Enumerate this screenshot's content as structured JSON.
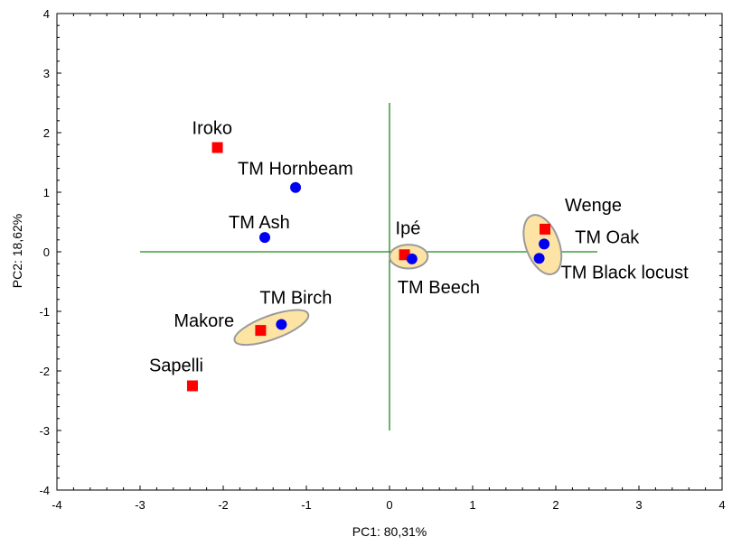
{
  "chart_data": {
    "type": "scatter",
    "xlabel": "PC1: 80,31%",
    "ylabel": "PC2: 18,62%",
    "xlim": [
      -4,
      4
    ],
    "ylim": [
      -4,
      4
    ],
    "xticks": [
      -4,
      -3,
      -2,
      -1,
      0,
      1,
      2,
      3,
      4
    ],
    "yticks": [
      -4,
      -3,
      -2,
      -1,
      0,
      1,
      2,
      3,
      4
    ],
    "grid": false,
    "reference_lines": {
      "horizontal": {
        "y": 0,
        "x_from": -3,
        "x_to": 2.5
      },
      "vertical": {
        "x": 0,
        "y_from": -3,
        "y_to": 2.5
      },
      "color": "#1a8a1a"
    },
    "series": [
      {
        "marker": "square",
        "color": "#ff0000",
        "points": [
          {
            "label": "Iroko",
            "x": -2.07,
            "y": 1.75
          },
          {
            "label": "Makore",
            "x": -1.55,
            "y": -1.32
          },
          {
            "label": "Sapelli",
            "x": -2.37,
            "y": -2.25
          },
          {
            "label": "Ipé",
            "x": 0.18,
            "y": -0.05
          },
          {
            "label": "Wenge",
            "x": 1.87,
            "y": 0.38
          }
        ]
      },
      {
        "marker": "circle",
        "color": "#0000ee",
        "points": [
          {
            "label": "TM Hornbeam",
            "x": -1.13,
            "y": 1.08
          },
          {
            "label": "TM Ash",
            "x": -1.5,
            "y": 0.24
          },
          {
            "label": "TM Birch",
            "x": -1.3,
            "y": -1.22
          },
          {
            "label": "TM Beech",
            "x": 0.27,
            "y": -0.12
          },
          {
            "label": "TM Oak",
            "x": 1.86,
            "y": 0.13
          },
          {
            "label": "TM Black locust",
            "x": 1.8,
            "y": -0.11
          }
        ]
      }
    ],
    "groups": [
      {
        "members": [
          "Makore",
          "TM Birch"
        ],
        "cx": -1.42,
        "cy": -1.27,
        "rx": 0.47,
        "ry": 0.2,
        "angle": 20
      },
      {
        "members": [
          "Ipé",
          "TM Beech"
        ],
        "cx": 0.23,
        "cy": -0.08,
        "rx": 0.23,
        "ry": 0.2,
        "angle": 0
      },
      {
        "members": [
          "Wenge",
          "TM Oak",
          "TM Black locust"
        ],
        "cx": 1.84,
        "cy": 0.12,
        "rx": 0.2,
        "ry": 0.52,
        "angle": 20
      }
    ],
    "group_fill": "#fde4a5",
    "group_stroke": "#9a9a9a"
  }
}
